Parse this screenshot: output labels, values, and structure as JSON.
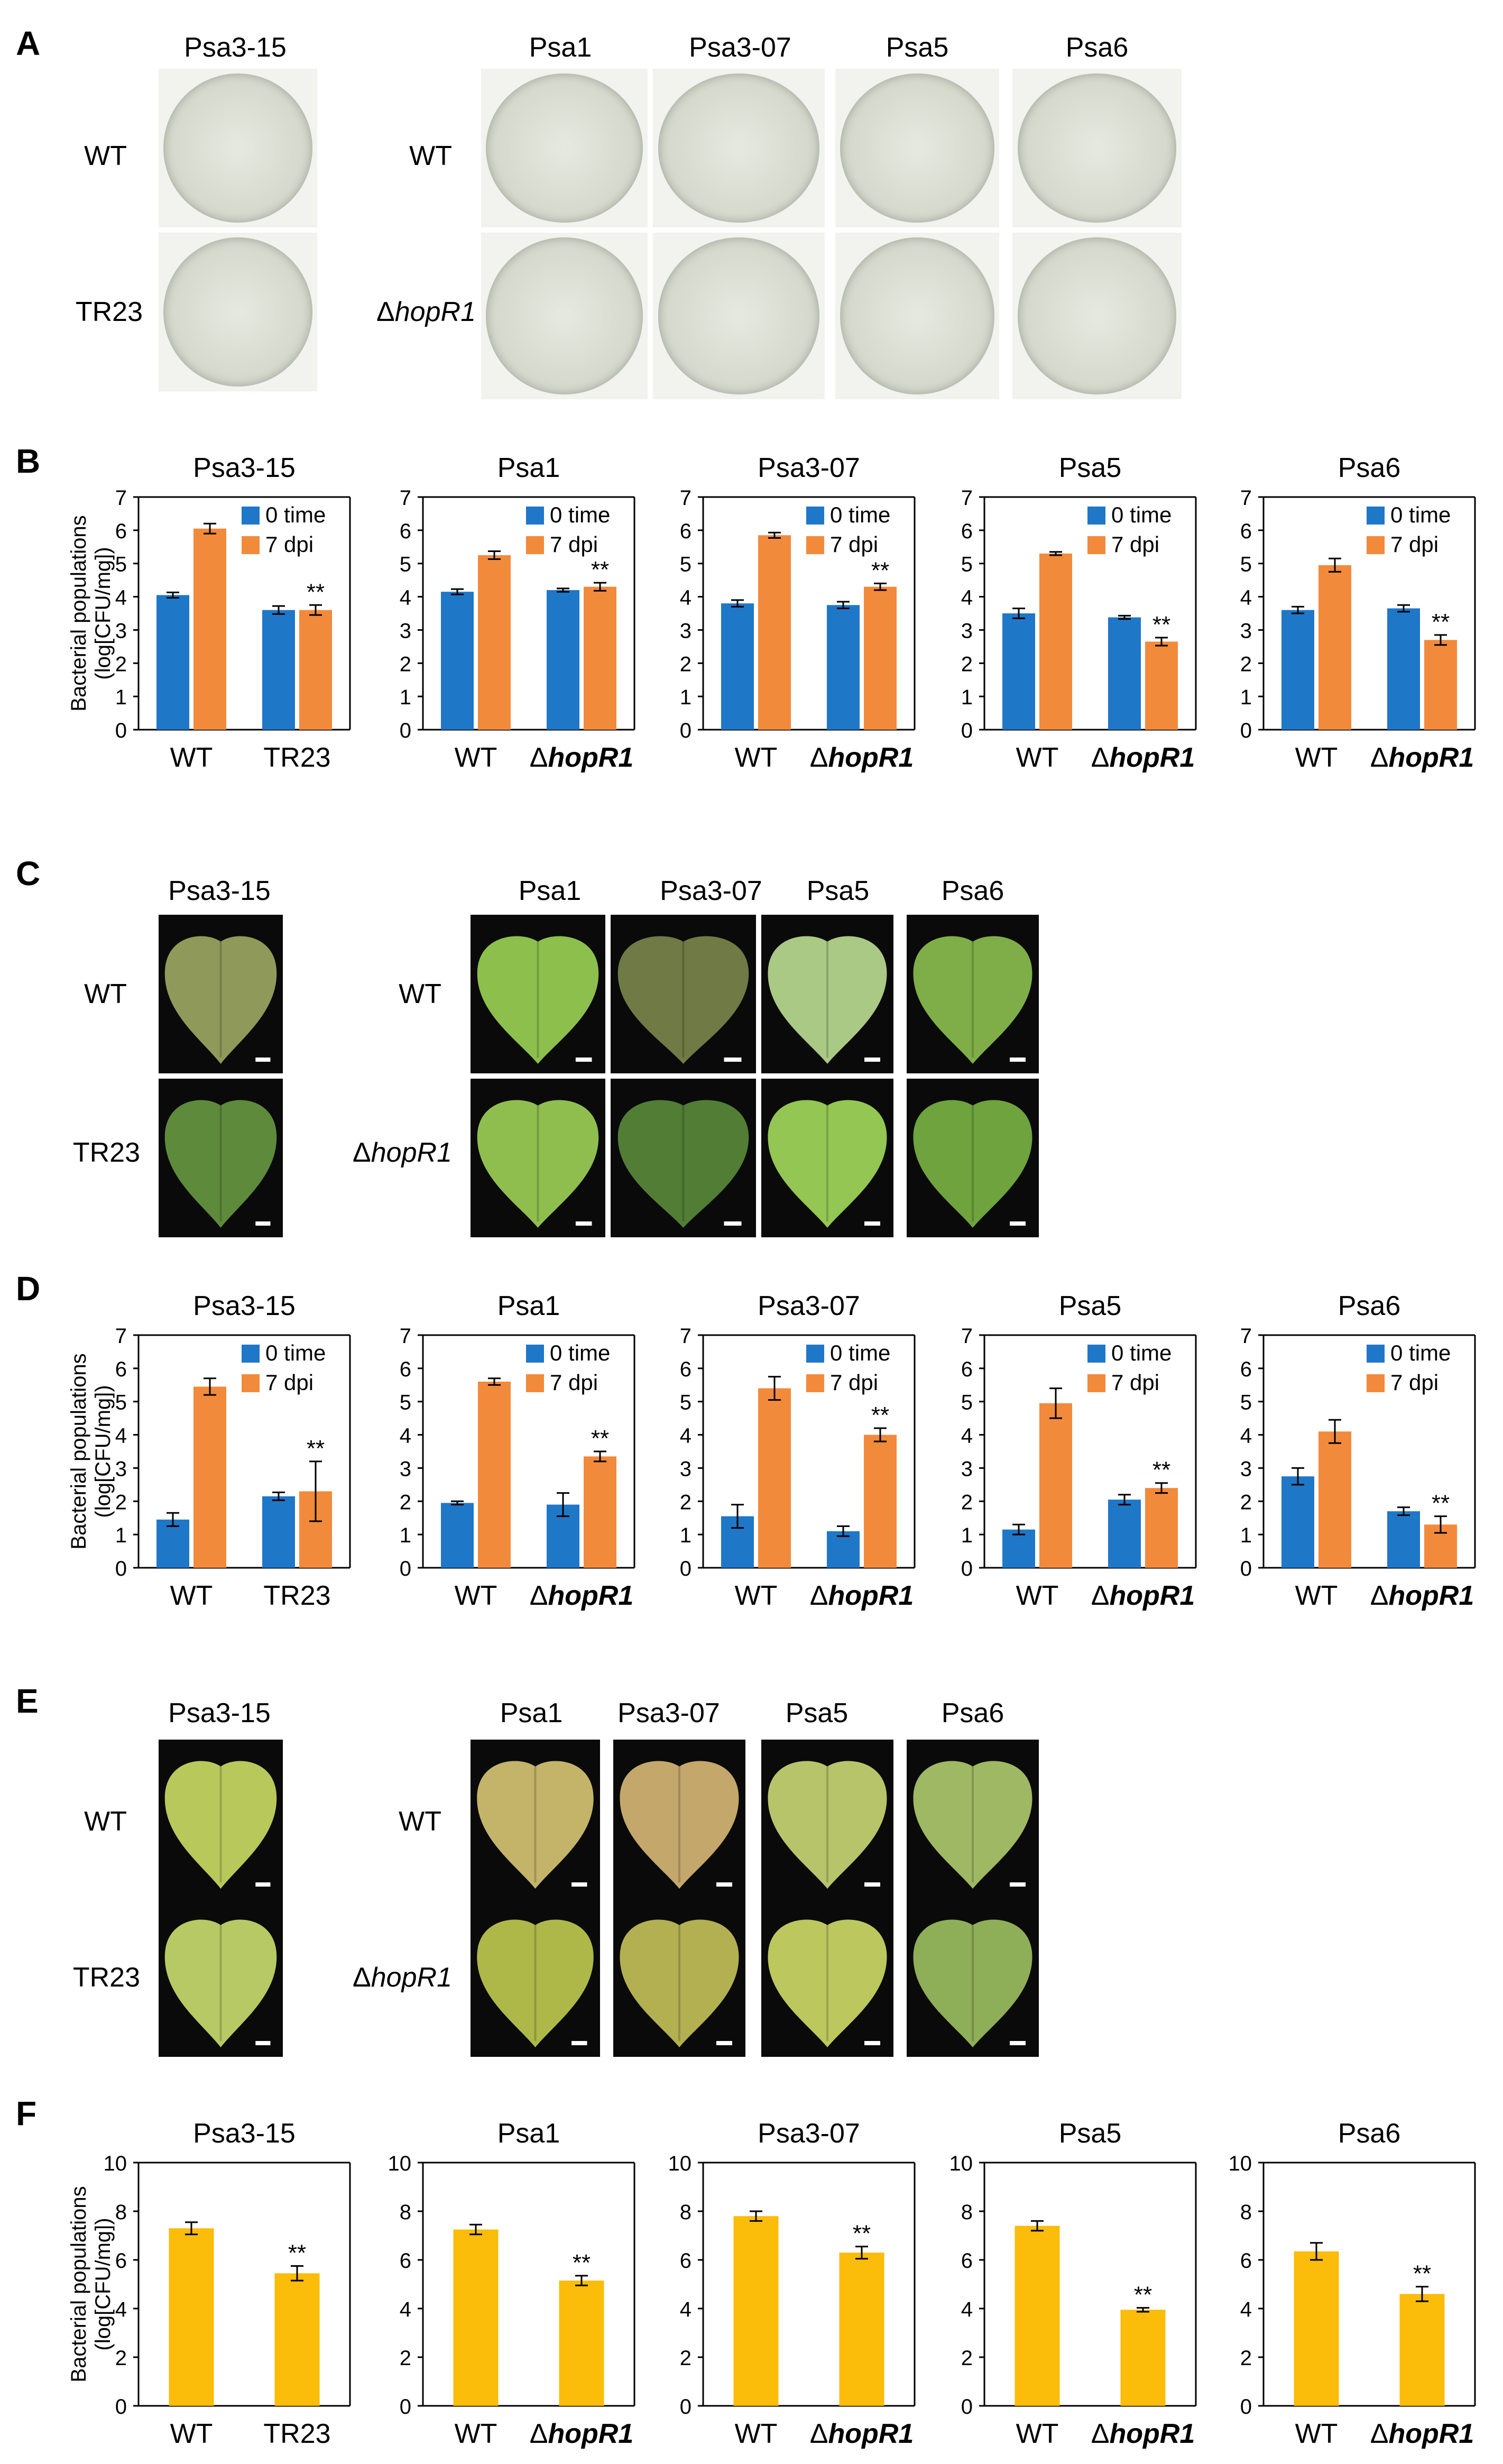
{
  "panels": {
    "A": {
      "letter": "A",
      "left_strain": "Psa3-15",
      "right_strains": [
        "Psa1",
        "Psa3-07",
        "Psa5",
        "Psa6"
      ],
      "left_rows": [
        "WT",
        "TR23"
      ],
      "right_rows_prefix": [
        "",
        "Δ"
      ],
      "right_rows": [
        "WT",
        "hopR1"
      ]
    },
    "B": {
      "letter": "B"
    },
    "C": {
      "letter": "C",
      "left_strain": "Psa3-15",
      "right_strains": [
        "Psa1",
        "Psa3-07",
        "Psa5",
        "Psa6"
      ],
      "left_rows": [
        "WT",
        "TR23"
      ],
      "right_rows_prefix": [
        "",
        "Δ"
      ],
      "right_rows": [
        "WT",
        "hopR1"
      ]
    },
    "D": {
      "letter": "D"
    },
    "E": {
      "letter": "E",
      "left_strain": "Psa3-15",
      "right_strains": [
        "Psa1",
        "Psa3-07",
        "Psa5",
        "Psa6"
      ],
      "left_rows": [
        "WT",
        "TR23"
      ],
      "right_rows_prefix": [
        "",
        "Δ"
      ],
      "right_rows": [
        "WT",
        "hopR1"
      ]
    },
    "F": {
      "letter": "F"
    }
  },
  "colors": {
    "zero_time": "#1f77c8",
    "seven_dpi": "#f28a3c",
    "yellow": "#fbbc0a",
    "error_bar": "#000000"
  },
  "chart_data": [
    {
      "panel": "B",
      "type": "bar",
      "title": "Psa3-15",
      "ylabel": "Bacterial populations (log[CFU/mg])",
      "ylim": [
        0,
        7
      ],
      "categories": [
        {
          "prefix": "",
          "name": "WT"
        },
        {
          "prefix": "",
          "name": "TR23"
        }
      ],
      "series": [
        {
          "name": "0 time",
          "values": [
            4.05,
            3.6
          ],
          "err": [
            0.08,
            0.12
          ]
        },
        {
          "name": "7 dpi",
          "values": [
            6.05,
            3.6
          ],
          "err": [
            0.15,
            0.15
          ]
        }
      ],
      "annotations": [
        {
          "series": 1,
          "category": 1,
          "text": "**"
        }
      ]
    },
    {
      "panel": "B",
      "type": "bar",
      "title": "Psa1",
      "ylim": [
        0,
        7
      ],
      "categories": [
        {
          "prefix": "",
          "name": "WT"
        },
        {
          "prefix": "Δ",
          "name": "hopR1"
        }
      ],
      "series": [
        {
          "name": "0 time",
          "values": [
            4.15,
            4.2
          ],
          "err": [
            0.08,
            0.05
          ]
        },
        {
          "name": "7 dpi",
          "values": [
            5.25,
            4.3
          ],
          "err": [
            0.12,
            0.12
          ]
        }
      ],
      "annotations": [
        {
          "series": 1,
          "category": 1,
          "text": "**"
        }
      ]
    },
    {
      "panel": "B",
      "type": "bar",
      "title": "Psa3-07",
      "ylim": [
        0,
        7
      ],
      "categories": [
        {
          "prefix": "",
          "name": "WT"
        },
        {
          "prefix": "Δ",
          "name": "hopR1"
        }
      ],
      "series": [
        {
          "name": "0 time",
          "values": [
            3.8,
            3.75
          ],
          "err": [
            0.1,
            0.1
          ]
        },
        {
          "name": "7 dpi",
          "values": [
            5.85,
            4.3
          ],
          "err": [
            0.08,
            0.1
          ]
        }
      ],
      "annotations": [
        {
          "series": 1,
          "category": 1,
          "text": "**"
        }
      ]
    },
    {
      "panel": "B",
      "type": "bar",
      "title": "Psa5",
      "ylim": [
        0,
        7
      ],
      "categories": [
        {
          "prefix": "",
          "name": "WT"
        },
        {
          "prefix": "Δ",
          "name": "hopR1"
        }
      ],
      "series": [
        {
          "name": "0 time",
          "values": [
            3.5,
            3.38
          ],
          "err": [
            0.15,
            0.05
          ]
        },
        {
          "name": "7 dpi",
          "values": [
            5.3,
            2.65
          ],
          "err": [
            0.05,
            0.12
          ]
        }
      ],
      "annotations": [
        {
          "series": 1,
          "category": 1,
          "text": "**"
        }
      ]
    },
    {
      "panel": "B",
      "type": "bar",
      "title": "Psa6",
      "ylim": [
        0,
        7
      ],
      "categories": [
        {
          "prefix": "",
          "name": "WT"
        },
        {
          "prefix": "Δ",
          "name": "hopR1"
        }
      ],
      "series": [
        {
          "name": "0 time",
          "values": [
            3.6,
            3.65
          ],
          "err": [
            0.1,
            0.1
          ]
        },
        {
          "name": "7 dpi",
          "values": [
            4.95,
            2.7
          ],
          "err": [
            0.2,
            0.15
          ]
        }
      ],
      "annotations": [
        {
          "series": 1,
          "category": 1,
          "text": "**"
        }
      ]
    },
    {
      "panel": "D",
      "type": "bar",
      "title": "Psa3-15",
      "ylabel": "Bacterial populations (log[CFU/mg])",
      "ylim": [
        0,
        7
      ],
      "categories": [
        {
          "prefix": "",
          "name": "WT"
        },
        {
          "prefix": "",
          "name": "TR23"
        }
      ],
      "series": [
        {
          "name": "0 time",
          "values": [
            1.45,
            2.15
          ],
          "err": [
            0.2,
            0.12
          ]
        },
        {
          "name": "7 dpi",
          "values": [
            5.45,
            2.3
          ],
          "err": [
            0.25,
            0.9
          ]
        }
      ],
      "annotations": [
        {
          "series": 1,
          "category": 1,
          "text": "**"
        }
      ]
    },
    {
      "panel": "D",
      "type": "bar",
      "title": "Psa1",
      "ylim": [
        0,
        7
      ],
      "categories": [
        {
          "prefix": "",
          "name": "WT"
        },
        {
          "prefix": "Δ",
          "name": "hopR1"
        }
      ],
      "series": [
        {
          "name": "0 time",
          "values": [
            1.95,
            1.9
          ],
          "err": [
            0.05,
            0.35
          ]
        },
        {
          "name": "7 dpi",
          "values": [
            5.6,
            3.35
          ],
          "err": [
            0.1,
            0.15
          ]
        }
      ],
      "annotations": [
        {
          "series": 1,
          "category": 1,
          "text": "**"
        }
      ]
    },
    {
      "panel": "D",
      "type": "bar",
      "title": "Psa3-07",
      "ylim": [
        0,
        7
      ],
      "categories": [
        {
          "prefix": "",
          "name": "WT"
        },
        {
          "prefix": "Δ",
          "name": "hopR1"
        }
      ],
      "series": [
        {
          "name": "0 time",
          "values": [
            1.55,
            1.1
          ],
          "err": [
            0.35,
            0.15
          ]
        },
        {
          "name": "7 dpi",
          "values": [
            5.4,
            4.0
          ],
          "err": [
            0.35,
            0.2
          ]
        }
      ],
      "annotations": [
        {
          "series": 1,
          "category": 1,
          "text": "**"
        }
      ]
    },
    {
      "panel": "D",
      "type": "bar",
      "title": "Psa5",
      "ylim": [
        0,
        7
      ],
      "categories": [
        {
          "prefix": "",
          "name": "WT"
        },
        {
          "prefix": "Δ",
          "name": "hopR1"
        }
      ],
      "series": [
        {
          "name": "0 time",
          "values": [
            1.15,
            2.05
          ],
          "err": [
            0.15,
            0.15
          ]
        },
        {
          "name": "7 dpi",
          "values": [
            4.95,
            2.4
          ],
          "err": [
            0.45,
            0.15
          ]
        }
      ],
      "annotations": [
        {
          "series": 1,
          "category": 1,
          "text": "**"
        }
      ]
    },
    {
      "panel": "D",
      "type": "bar",
      "title": "Psa6",
      "ylim": [
        0,
        7
      ],
      "categories": [
        {
          "prefix": "",
          "name": "WT"
        },
        {
          "prefix": "Δ",
          "name": "hopR1"
        }
      ],
      "series": [
        {
          "name": "0 time",
          "values": [
            2.75,
            1.7
          ],
          "err": [
            0.25,
            0.12
          ]
        },
        {
          "name": "7 dpi",
          "values": [
            4.1,
            1.3
          ],
          "err": [
            0.35,
            0.25
          ]
        }
      ],
      "annotations": [
        {
          "series": 1,
          "category": 1,
          "text": "**"
        }
      ]
    },
    {
      "panel": "F",
      "type": "bar",
      "title": "Psa3-15",
      "ylabel": "Bacterial populations (log[CFU/mg])",
      "ylim": [
        0,
        10
      ],
      "categories": [
        {
          "prefix": "",
          "name": "WT"
        },
        {
          "prefix": "",
          "name": "TR23"
        }
      ],
      "series": [
        {
          "values": [
            7.3,
            5.45
          ],
          "err": [
            0.25,
            0.3
          ]
        }
      ],
      "annotations": [
        {
          "series": 0,
          "category": 1,
          "text": "**"
        }
      ]
    },
    {
      "panel": "F",
      "type": "bar",
      "title": "Psa1",
      "ylim": [
        0,
        10
      ],
      "categories": [
        {
          "prefix": "",
          "name": "WT"
        },
        {
          "prefix": "Δ",
          "name": "hopR1"
        }
      ],
      "series": [
        {
          "values": [
            7.25,
            5.15
          ],
          "err": [
            0.2,
            0.2
          ]
        }
      ],
      "annotations": [
        {
          "series": 0,
          "category": 1,
          "text": "**"
        }
      ]
    },
    {
      "panel": "F",
      "type": "bar",
      "title": "Psa3-07",
      "ylim": [
        0,
        10
      ],
      "categories": [
        {
          "prefix": "",
          "name": "WT"
        },
        {
          "prefix": "Δ",
          "name": "hopR1"
        }
      ],
      "series": [
        {
          "values": [
            7.8,
            6.3
          ],
          "err": [
            0.2,
            0.25
          ]
        }
      ],
      "annotations": [
        {
          "series": 0,
          "category": 1,
          "text": "**"
        }
      ]
    },
    {
      "panel": "F",
      "type": "bar",
      "title": "Psa5",
      "ylim": [
        0,
        10
      ],
      "categories": [
        {
          "prefix": "",
          "name": "WT"
        },
        {
          "prefix": "Δ",
          "name": "hopR1"
        }
      ],
      "series": [
        {
          "values": [
            7.4,
            3.95
          ],
          "err": [
            0.2,
            0.08
          ]
        }
      ],
      "annotations": [
        {
          "series": 0,
          "category": 1,
          "text": "**"
        }
      ]
    },
    {
      "panel": "F",
      "type": "bar",
      "title": "Psa6",
      "ylim": [
        0,
        10
      ],
      "categories": [
        {
          "prefix": "",
          "name": "WT"
        },
        {
          "prefix": "Δ",
          "name": "hopR1"
        }
      ],
      "series": [
        {
          "values": [
            6.35,
            4.6
          ],
          "err": [
            0.35,
            0.3
          ]
        }
      ],
      "annotations": [
        {
          "series": 0,
          "category": 1,
          "text": "**"
        }
      ]
    }
  ]
}
